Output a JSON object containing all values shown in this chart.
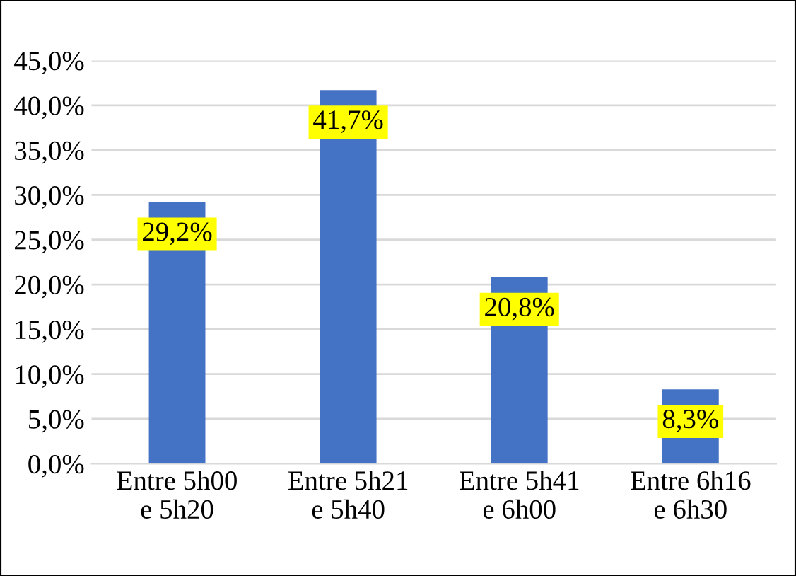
{
  "chart_data": {
    "type": "bar",
    "categories": [
      "Entre 5h00\ne 5h20",
      "Entre 5h21\ne 5h40",
      "Entre 5h41\ne 6h00",
      "Entre 6h16\ne 6h30"
    ],
    "values": [
      29.2,
      41.7,
      20.8,
      8.3
    ],
    "value_labels": [
      "29,2%",
      "41,7%",
      "20,8%",
      "8,3%"
    ],
    "color": "#4472c4",
    "ylim": [
      0,
      45
    ],
    "yticks": [
      {
        "value": 0,
        "label": "0,0%"
      },
      {
        "value": 5,
        "label": "5,0%"
      },
      {
        "value": 10,
        "label": "10,0%"
      },
      {
        "value": 15,
        "label": "15,0%"
      },
      {
        "value": 20,
        "label": "20,0%"
      },
      {
        "value": 25,
        "label": "25,0%"
      },
      {
        "value": 30,
        "label": "30,0%"
      },
      {
        "value": 35,
        "label": "35,0%"
      },
      {
        "value": 40,
        "label": "40,0%"
      },
      {
        "value": 45,
        "label": "45,0%"
      }
    ],
    "grid": "y"
  }
}
